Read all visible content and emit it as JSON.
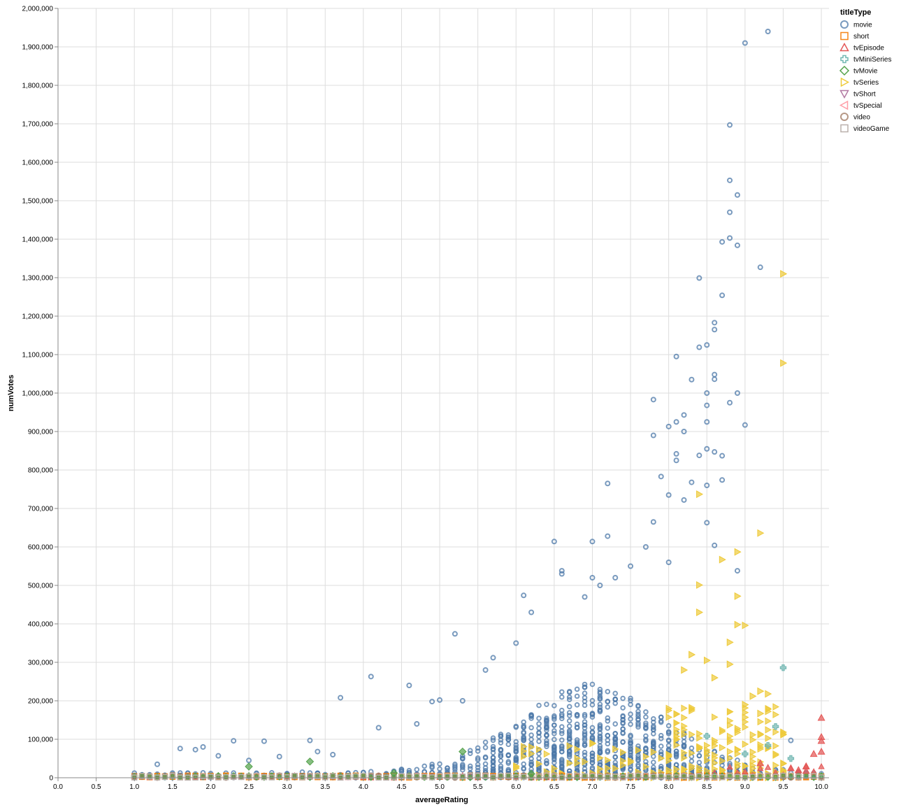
{
  "chart_data": {
    "type": "scatter",
    "xlabel": "averageRating",
    "ylabel": "numVotes",
    "xlim": [
      0,
      10.1
    ],
    "ylim": [
      0,
      2000000
    ],
    "x_ticks": [
      "0.0",
      "0.5",
      "1.0",
      "1.5",
      "2.0",
      "2.5",
      "3.0",
      "3.5",
      "4.0",
      "4.5",
      "5.0",
      "5.5",
      "6.0",
      "6.5",
      "7.0",
      "7.5",
      "8.0",
      "8.5",
      "9.0",
      "9.5",
      "10.0"
    ],
    "x_tick_values": [
      0,
      0.5,
      1,
      1.5,
      2,
      2.5,
      3,
      3.5,
      4,
      4.5,
      5,
      5.5,
      6,
      6.5,
      7,
      7.5,
      8,
      8.5,
      9,
      9.5,
      10
    ],
    "y_ticks": [
      "0",
      "100,000",
      "200,000",
      "300,000",
      "400,000",
      "500,000",
      "600,000",
      "700,000",
      "800,000",
      "900,000",
      "1,000,000",
      "1,100,000",
      "1,200,000",
      "1,300,000",
      "1,400,000",
      "1,500,000",
      "1,600,000",
      "1,700,000",
      "1,800,000",
      "1,900,000",
      "2,000,000"
    ],
    "y_tick_values": [
      0,
      100000,
      200000,
      300000,
      400000,
      500000,
      600000,
      700000,
      800000,
      900000,
      1000000,
      1100000,
      1200000,
      1300000,
      1400000,
      1500000,
      1600000,
      1700000,
      1800000,
      1900000,
      2000000
    ],
    "grid": true,
    "legend": {
      "title": "titleType",
      "position": "right",
      "entries": [
        {
          "name": "movie",
          "color": "#4c78a8",
          "shape": "circle"
        },
        {
          "name": "short",
          "color": "#f58518",
          "shape": "square"
        },
        {
          "name": "tvEpisode",
          "color": "#e45756",
          "shape": "triangle-up"
        },
        {
          "name": "tvMiniSeries",
          "color": "#72b7b2",
          "shape": "cross"
        },
        {
          "name": "tvMovie",
          "color": "#54a24b",
          "shape": "diamond"
        },
        {
          "name": "tvSeries",
          "color": "#eeca3b",
          "shape": "triangle-right"
        },
        {
          "name": "tvShort",
          "color": "#b279a2",
          "shape": "triangle-down"
        },
        {
          "name": "tvSpecial",
          "color": "#ff9da6",
          "shape": "triangle-left"
        },
        {
          "name": "video",
          "color": "#9d755d",
          "shape": "circle"
        },
        {
          "name": "videoGame",
          "color": "#bab0ac",
          "shape": "square"
        }
      ]
    },
    "series": [
      {
        "name": "movie",
        "points": [
          [
            9.3,
            1940000
          ],
          [
            9.0,
            1910000
          ],
          [
            8.8,
            1697000
          ],
          [
            8.8,
            1553000
          ],
          [
            8.9,
            1515000
          ],
          [
            8.8,
            1470000
          ],
          [
            8.8,
            1403000
          ],
          [
            8.7,
            1393000
          ],
          [
            8.9,
            1384000
          ],
          [
            9.2,
            1327000
          ],
          [
            8.4,
            1299000
          ],
          [
            8.7,
            1254000
          ],
          [
            8.6,
            1183000
          ],
          [
            8.6,
            1165000
          ],
          [
            8.5,
            1125000
          ],
          [
            8.4,
            1119000
          ],
          [
            8.1,
            1095000
          ],
          [
            8.3,
            1035000
          ],
          [
            8.6,
            1048000
          ],
          [
            8.6,
            1036000
          ],
          [
            8.5,
            1000000
          ],
          [
            8.9,
            1000000
          ],
          [
            8.5,
            968000
          ],
          [
            8.8,
            975000
          ],
          [
            7.8,
            983000
          ],
          [
            8.2,
            943000
          ],
          [
            8.1,
            925000
          ],
          [
            9.0,
            917000
          ],
          [
            8.0,
            913000
          ],
          [
            8.5,
            925000
          ],
          [
            7.8,
            890000
          ],
          [
            8.2,
            900000
          ],
          [
            8.4,
            838000
          ],
          [
            8.5,
            855000
          ],
          [
            8.6,
            847000
          ],
          [
            8.7,
            837000
          ],
          [
            8.1,
            842000
          ],
          [
            8.1,
            825000
          ],
          [
            7.9,
            783000
          ],
          [
            8.7,
            774000
          ],
          [
            7.2,
            765000
          ],
          [
            8.5,
            760000
          ],
          [
            8.3,
            768000
          ],
          [
            8.0,
            735000
          ],
          [
            8.2,
            722000
          ],
          [
            7.8,
            665000
          ],
          [
            8.5,
            663000
          ],
          [
            8.6,
            604000
          ],
          [
            6.5,
            614000
          ],
          [
            7.0,
            614000
          ],
          [
            7.2,
            628000
          ],
          [
            8.9,
            538000
          ],
          [
            6.6,
            538000
          ],
          [
            6.6,
            530000
          ],
          [
            5.2,
            374000
          ],
          [
            6.1,
            474000
          ],
          [
            6.2,
            430000
          ],
          [
            6.0,
            350000
          ],
          [
            5.7,
            312000
          ],
          [
            5.6,
            280000
          ],
          [
            4.1,
            263000
          ],
          [
            4.6,
            240000
          ],
          [
            3.7,
            208000
          ],
          [
            4.9,
            198000
          ],
          [
            5.0,
            202000
          ],
          [
            5.3,
            200000
          ],
          [
            4.7,
            140000
          ],
          [
            4.2,
            130000
          ],
          [
            1.6,
            76000
          ],
          [
            1.9,
            80000
          ],
          [
            2.3,
            96000
          ],
          [
            2.7,
            95000
          ],
          [
            3.3,
            97000
          ],
          [
            2.1,
            57000
          ],
          [
            1.8,
            73000
          ],
          [
            1.3,
            35000
          ],
          [
            2.5,
            45000
          ],
          [
            2.9,
            55000
          ],
          [
            3.4,
            68000
          ],
          [
            3.6,
            60000
          ],
          [
            9.6,
            97000
          ],
          [
            7.0,
            520000
          ],
          [
            7.5,
            550000
          ],
          [
            7.7,
            600000
          ],
          [
            8.0,
            560000
          ],
          [
            7.3,
            520000
          ],
          [
            6.9,
            470000
          ],
          [
            7.1,
            500000
          ]
        ]
      },
      {
        "name": "tvSeries",
        "points": [
          [
            9.5,
            1310000
          ],
          [
            9.5,
            1078000
          ],
          [
            9.2,
            636000
          ],
          [
            8.4,
            737000
          ],
          [
            8.7,
            567000
          ],
          [
            8.9,
            587000
          ],
          [
            8.9,
            472000
          ],
          [
            9.0,
            396000
          ],
          [
            8.9,
            398000
          ],
          [
            8.8,
            352000
          ],
          [
            8.4,
            430000
          ],
          [
            8.4,
            501000
          ],
          [
            8.8,
            295000
          ],
          [
            9.2,
            225000
          ],
          [
            9.3,
            218000
          ],
          [
            9.2,
            167000
          ],
          [
            9.0,
            157000
          ],
          [
            9.1,
            212000
          ],
          [
            9.0,
            190000
          ],
          [
            8.6,
            260000
          ],
          [
            8.5,
            305000
          ],
          [
            8.3,
            320000
          ],
          [
            8.2,
            280000
          ]
        ]
      },
      {
        "name": "tvMiniSeries",
        "points": [
          [
            9.5,
            286000
          ],
          [
            9.4,
            133000
          ],
          [
            9.3,
            84000
          ],
          [
            9.6,
            50000
          ],
          [
            8.5,
            108000
          ],
          [
            9.0,
            62000
          ]
        ]
      },
      {
        "name": "tvEpisode",
        "points": [
          [
            10.0,
            156000
          ],
          [
            10.0,
            106000
          ],
          [
            10.0,
            96000
          ],
          [
            10.0,
            68000
          ],
          [
            9.9,
            62000
          ],
          [
            9.7,
            20000
          ],
          [
            9.8,
            30000
          ],
          [
            9.2,
            38000
          ],
          [
            9.6,
            25000
          ],
          [
            9.8,
            18000
          ]
        ]
      },
      {
        "name": "tvMovie",
        "points": [
          [
            2.5,
            29000
          ],
          [
            3.3,
            42000
          ],
          [
            5.3,
            68000
          ],
          [
            4.4,
            12000
          ],
          [
            6.2,
            10000
          ]
        ]
      }
    ]
  }
}
